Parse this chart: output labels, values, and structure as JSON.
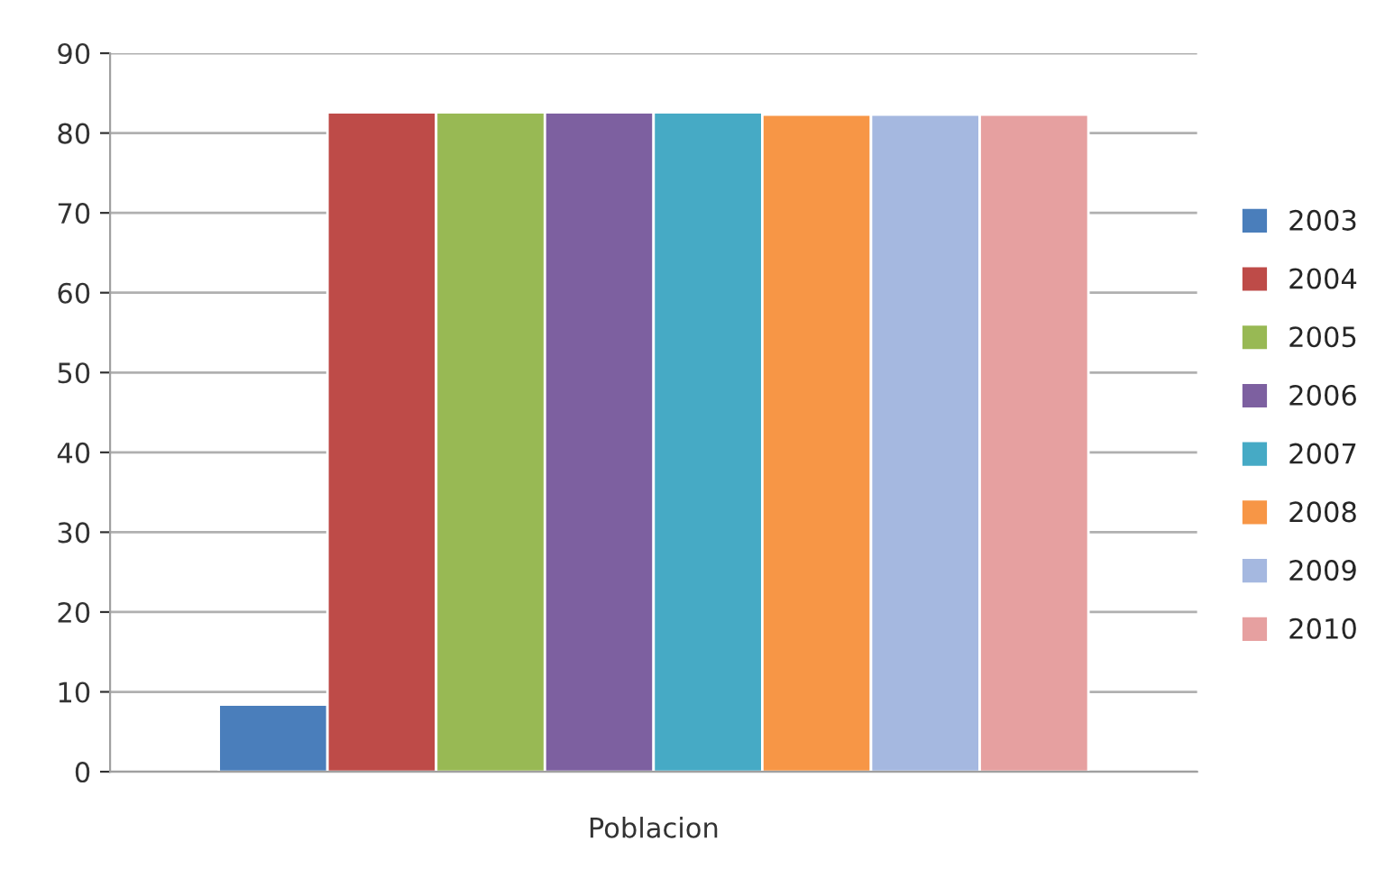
{
  "chart_data": {
    "type": "bar",
    "categories": [
      "Poblacion"
    ],
    "series": [
      {
        "name": "2003",
        "color": "#4a7ebb",
        "values": [
          8.4
        ]
      },
      {
        "name": "2004",
        "color": "#be4b48",
        "values": [
          82.6
        ]
      },
      {
        "name": "2005",
        "color": "#98b954",
        "values": [
          82.6
        ]
      },
      {
        "name": "2006",
        "color": "#7d60a0",
        "values": [
          82.6
        ]
      },
      {
        "name": "2007",
        "color": "#46aac5",
        "values": [
          82.6
        ]
      },
      {
        "name": "2008",
        "color": "#f79646",
        "values": [
          82.3
        ]
      },
      {
        "name": "2009",
        "color": "#a5b8e0",
        "values": [
          82.3
        ]
      },
      {
        "name": "2010",
        "color": "#e6a0a0",
        "values": [
          82.3
        ]
      }
    ],
    "ylim": [
      0,
      90
    ],
    "yticks": [
      0,
      10,
      20,
      30,
      40,
      50,
      60,
      70,
      80,
      90
    ],
    "grid": "y",
    "legend": "right"
  }
}
